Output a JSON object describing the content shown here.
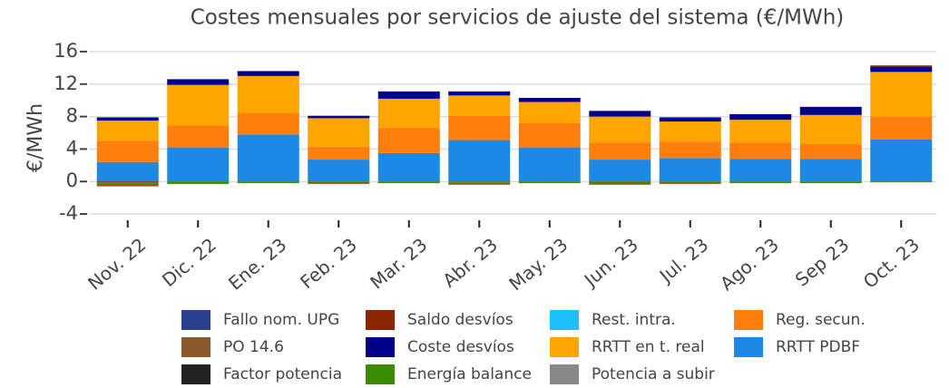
{
  "chart_data": {
    "type": "stacked_bar",
    "title": "Costes mensuales por servicios de ajuste del sistema (€/MWh)",
    "ylabel": "€/MWh",
    "categories": [
      "Nov. 22",
      "Dic. 22",
      "Ene. 23",
      "Feb. 23",
      "Mar. 23",
      "Abr. 23",
      "May. 23",
      "Jun. 23",
      "Jul. 23",
      "Ago. 23",
      "Sep 23",
      "Oct. 23"
    ],
    "ylim": [
      -5,
      17
    ],
    "yticks": [
      -4,
      0,
      4,
      8,
      12,
      16
    ],
    "grid": true,
    "series": [
      {
        "name": "Fallo nom. UPG",
        "color": "#2b3f8f",
        "values": [
          0,
          0,
          0,
          0,
          0,
          0,
          0,
          0,
          0,
          0,
          0,
          0
        ]
      },
      {
        "name": "Saldo desvíos",
        "color": "#8b2500",
        "values": [
          -0.1,
          0,
          0,
          0,
          0,
          0,
          0,
          0,
          0,
          0,
          0,
          0.2
        ]
      },
      {
        "name": "Rest. intra.",
        "color": "#1ec0ff",
        "values": [
          0,
          0,
          0,
          0,
          0,
          0,
          0,
          0,
          0,
          0,
          0,
          0
        ]
      },
      {
        "name": "Reg. secun.",
        "color": "#ff7f0e",
        "values": [
          2.6,
          2.7,
          2.6,
          1.6,
          3.1,
          3.0,
          3.0,
          2.1,
          2.0,
          2.0,
          1.8,
          2.8
        ]
      },
      {
        "name": "PO 14.6",
        "color": "#8b5a2b",
        "values": [
          -0.3,
          0,
          0,
          -0.1,
          0,
          -0.3,
          0,
          -0.2,
          -0.1,
          0,
          0,
          0
        ]
      },
      {
        "name": "Coste desvíos",
        "color": "#00008b",
        "values": [
          0.4,
          0.7,
          0.6,
          0.3,
          0.9,
          0.5,
          0.5,
          0.7,
          0.5,
          0.7,
          1.0,
          0.6
        ]
      },
      {
        "name": "RRTT en t. real",
        "color": "#ffa500",
        "values": [
          2.5,
          5.0,
          4.6,
          3.5,
          3.6,
          2.5,
          2.6,
          3.2,
          2.5,
          2.8,
          3.6,
          5.5
        ]
      },
      {
        "name": "RRTT PDBF",
        "color": "#1e88e5",
        "values": [
          2.4,
          4.2,
          5.8,
          2.7,
          3.5,
          5.1,
          4.2,
          2.7,
          2.9,
          2.8,
          2.8,
          5.2
        ]
      },
      {
        "name": "Factor potencia",
        "color": "#222222",
        "values": [
          0,
          0,
          0,
          0,
          0,
          0,
          0,
          0,
          0,
          0,
          0,
          0
        ]
      },
      {
        "name": "Energía balance",
        "color": "#3a8a00",
        "values": [
          -0.2,
          -0.3,
          -0.2,
          -0.2,
          -0.2,
          -0.1,
          -0.2,
          -0.2,
          -0.2,
          -0.2,
          -0.2,
          -0.1
        ]
      },
      {
        "name": "Potencia a subir",
        "color": "#888888",
        "values": [
          0,
          0,
          0,
          0,
          0,
          0,
          0,
          0,
          0,
          0,
          0,
          0
        ]
      }
    ]
  }
}
